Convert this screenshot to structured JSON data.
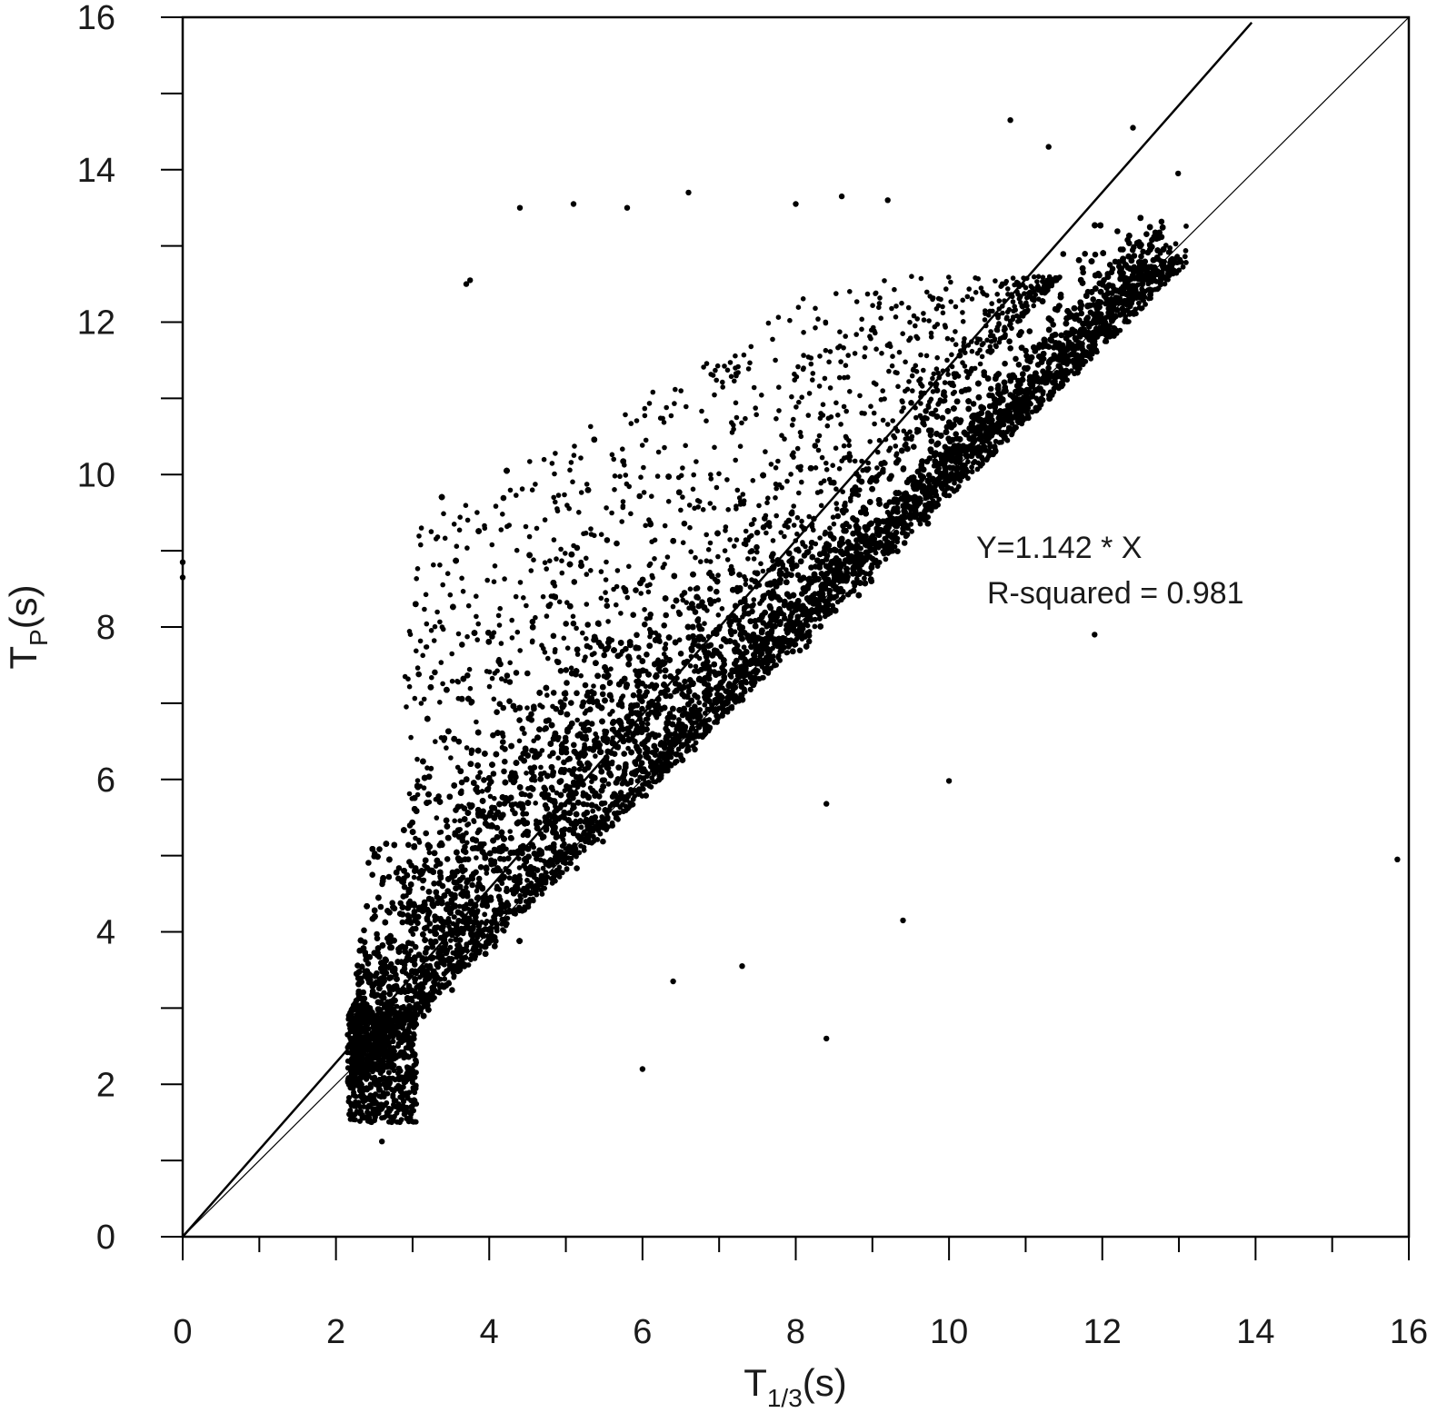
{
  "chart_data": {
    "type": "scatter",
    "title": "",
    "xlabel": {
      "main": "T",
      "sub": "1/3",
      "unit": "(s)"
    },
    "ylabel": {
      "main": "T",
      "sub": "P",
      "unit": "(s)"
    },
    "xlim": [
      0,
      16
    ],
    "ylim": [
      0,
      16
    ],
    "x_ticks": [
      "0",
      "2",
      "4",
      "6",
      "8",
      "10",
      "12",
      "14",
      "16"
    ],
    "y_ticks": [
      "0",
      "2",
      "4",
      "6",
      "8",
      "10",
      "12",
      "14",
      "16"
    ],
    "minor_tick_step": 1,
    "grid": false,
    "legend": "none",
    "marker_color": "#000000",
    "series": [
      {
        "description_count_estimate": 60000,
        "dense_band": {
          "x_range": [
            2.1,
            13.1
          ],
          "y_range": [
            1.3,
            13.7
          ]
        },
        "sampled_outliers": [
          {
            "x": 0.0,
            "y": 8.85
          },
          {
            "x": 0.0,
            "y": 8.65
          },
          {
            "x": 3.7,
            "y": 12.5
          },
          {
            "x": 3.75,
            "y": 12.55
          },
          {
            "x": 4.4,
            "y": 13.5
          },
          {
            "x": 5.1,
            "y": 13.55
          },
          {
            "x": 5.8,
            "y": 13.5
          },
          {
            "x": 6.6,
            "y": 13.7
          },
          {
            "x": 8.0,
            "y": 13.55
          },
          {
            "x": 8.6,
            "y": 13.65
          },
          {
            "x": 9.2,
            "y": 13.6
          },
          {
            "x": 10.8,
            "y": 14.65
          },
          {
            "x": 11.3,
            "y": 14.3
          },
          {
            "x": 12.4,
            "y": 14.55
          },
          {
            "x": 12.99,
            "y": 13.95
          },
          {
            "x": 11.9,
            "y": 7.9
          },
          {
            "x": 10.0,
            "y": 5.98
          },
          {
            "x": 8.4,
            "y": 5.68
          },
          {
            "x": 9.4,
            "y": 4.15
          },
          {
            "x": 7.3,
            "y": 3.55
          },
          {
            "x": 6.4,
            "y": 3.35
          },
          {
            "x": 8.4,
            "y": 2.6
          },
          {
            "x": 6.0,
            "y": 2.2
          },
          {
            "x": 15.85,
            "y": 4.95
          },
          {
            "x": 2.6,
            "y": 1.25
          }
        ]
      }
    ],
    "lines": [
      {
        "name": "fit",
        "slope": 1.142,
        "x_range": [
          0,
          13.95
        ],
        "stroke": 2.5
      },
      {
        "name": "one-to-one",
        "slope": 1.0,
        "x_range": [
          0,
          16
        ],
        "stroke": 1.2
      }
    ],
    "annotations": [
      "Y=1.142 * X",
      "R-squared = 0.981"
    ]
  }
}
